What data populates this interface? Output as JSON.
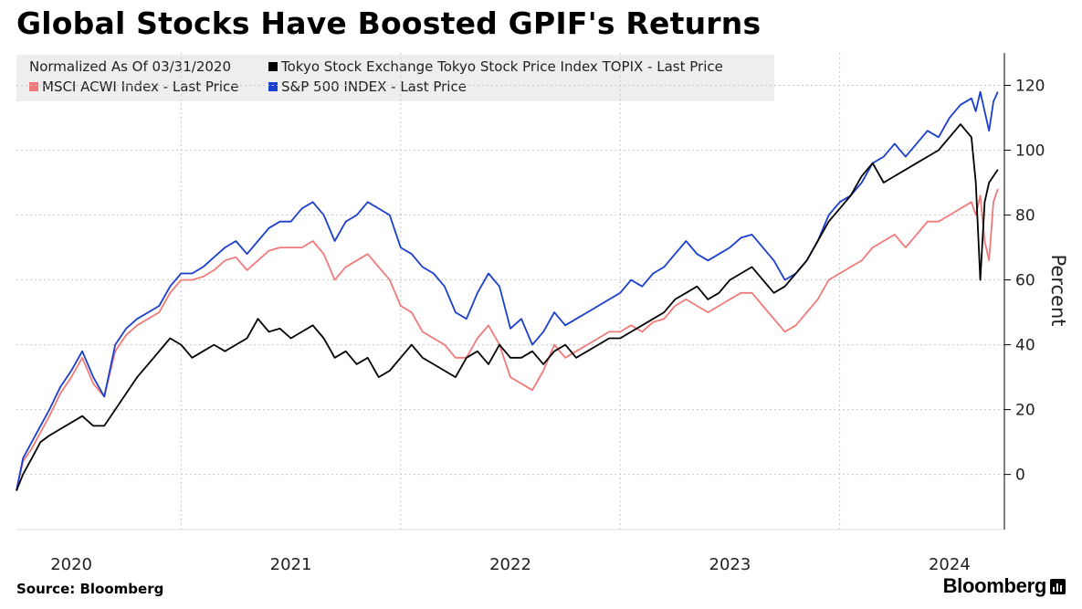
{
  "title": "Global Stocks Have Boosted GPIF's Returns",
  "legend": {
    "note": "Normalized As Of 03/31/2020",
    "items": [
      {
        "label": "Tokyo Stock Exchange Tokyo Stock Price Index TOPIX - Last Price",
        "color": "#000000"
      },
      {
        "label": "MSCI ACWI Index - Last Price",
        "color": "#f07a7a"
      },
      {
        "label": "S&P 500 INDEX - Last Price",
        "color": "#1a3fcc"
      }
    ]
  },
  "footer": {
    "source": "Source: Bloomberg",
    "brand": "Bloomberg"
  },
  "chart_data": {
    "type": "line",
    "title": "Global Stocks Have Boosted GPIF's Returns",
    "ylabel": "Percent",
    "xlabel": "",
    "ylim": [
      -17,
      130
    ],
    "yticks": [
      0,
      20,
      40,
      60,
      80,
      100,
      120
    ],
    "xlim": [
      2020.25,
      2024.75
    ],
    "year_labels": [
      "2020",
      "2021",
      "2022",
      "2023",
      "2024"
    ],
    "year_label_positions": [
      2020.5,
      2021.5,
      2022.5,
      2023.5,
      2024.5
    ],
    "year_boundaries": [
      2021.0,
      2022.0,
      2023.0,
      2024.0
    ],
    "grid": true,
    "series": [
      {
        "name": "S&P 500 INDEX - Last Price",
        "color": "#1a3fcc",
        "x": [
          2020.25,
          2020.28,
          2020.32,
          2020.36,
          2020.4,
          2020.45,
          2020.5,
          2020.55,
          2020.6,
          2020.65,
          2020.7,
          2020.75,
          2020.8,
          2020.85,
          2020.9,
          2020.95,
          2021.0,
          2021.05,
          2021.1,
          2021.15,
          2021.2,
          2021.25,
          2021.3,
          2021.35,
          2021.4,
          2021.45,
          2021.5,
          2021.55,
          2021.6,
          2021.65,
          2021.7,
          2021.75,
          2021.8,
          2021.85,
          2021.9,
          2021.95,
          2022.0,
          2022.05,
          2022.1,
          2022.15,
          2022.2,
          2022.25,
          2022.3,
          2022.35,
          2022.4,
          2022.45,
          2022.5,
          2022.55,
          2022.6,
          2022.65,
          2022.7,
          2022.75,
          2022.8,
          2022.85,
          2022.9,
          2022.95,
          2023.0,
          2023.05,
          2023.1,
          2023.15,
          2023.2,
          2023.25,
          2023.3,
          2023.35,
          2023.4,
          2023.45,
          2023.5,
          2023.55,
          2023.6,
          2023.65,
          2023.7,
          2023.75,
          2023.8,
          2023.85,
          2023.9,
          2023.95,
          2024.0,
          2024.05,
          2024.1,
          2024.15,
          2024.2,
          2024.25,
          2024.3,
          2024.35,
          2024.4,
          2024.45,
          2024.5,
          2024.55,
          2024.6,
          2024.62,
          2024.64,
          2024.66,
          2024.68,
          2024.7,
          2024.72
        ],
        "y": [
          -5,
          5,
          10,
          15,
          20,
          27,
          32,
          38,
          30,
          24,
          40,
          45,
          48,
          50,
          52,
          58,
          62,
          62,
          64,
          67,
          70,
          72,
          68,
          72,
          76,
          78,
          78,
          82,
          84,
          80,
          72,
          78,
          80,
          84,
          82,
          80,
          70,
          68,
          64,
          62,
          58,
          50,
          48,
          56,
          62,
          58,
          45,
          48,
          40,
          44,
          50,
          46,
          48,
          50,
          52,
          54,
          56,
          60,
          58,
          62,
          64,
          68,
          72,
          68,
          66,
          68,
          70,
          73,
          74,
          70,
          66,
          60,
          62,
          66,
          72,
          80,
          84,
          86,
          90,
          96,
          98,
          102,
          98,
          102,
          106,
          104,
          110,
          114,
          116,
          112,
          118,
          112,
          106,
          115,
          118
        ]
      },
      {
        "name": "MSCI ACWI Index - Last Price",
        "color": "#f07a7a",
        "x": [
          2020.25,
          2020.28,
          2020.32,
          2020.36,
          2020.4,
          2020.45,
          2020.5,
          2020.55,
          2020.6,
          2020.65,
          2020.7,
          2020.75,
          2020.8,
          2020.85,
          2020.9,
          2020.95,
          2021.0,
          2021.05,
          2021.1,
          2021.15,
          2021.2,
          2021.25,
          2021.3,
          2021.35,
          2021.4,
          2021.45,
          2021.5,
          2021.55,
          2021.6,
          2021.65,
          2021.7,
          2021.75,
          2021.8,
          2021.85,
          2021.9,
          2021.95,
          2022.0,
          2022.05,
          2022.1,
          2022.15,
          2022.2,
          2022.25,
          2022.3,
          2022.35,
          2022.4,
          2022.45,
          2022.5,
          2022.55,
          2022.6,
          2022.65,
          2022.7,
          2022.75,
          2022.8,
          2022.85,
          2022.9,
          2022.95,
          2023.0,
          2023.05,
          2023.1,
          2023.15,
          2023.2,
          2023.25,
          2023.3,
          2023.35,
          2023.4,
          2023.45,
          2023.5,
          2023.55,
          2023.6,
          2023.65,
          2023.7,
          2023.75,
          2023.8,
          2023.85,
          2023.9,
          2023.95,
          2024.0,
          2024.05,
          2024.1,
          2024.15,
          2024.2,
          2024.25,
          2024.3,
          2024.35,
          2024.4,
          2024.45,
          2024.5,
          2024.55,
          2024.6,
          2024.62,
          2024.64,
          2024.66,
          2024.68,
          2024.7,
          2024.72
        ],
        "y": [
          -5,
          4,
          8,
          13,
          18,
          25,
          30,
          36,
          28,
          24,
          38,
          43,
          46,
          48,
          50,
          56,
          60,
          60,
          61,
          63,
          66,
          67,
          63,
          66,
          69,
          70,
          70,
          70,
          72,
          68,
          60,
          64,
          66,
          68,
          64,
          60,
          52,
          50,
          44,
          42,
          40,
          36,
          36,
          42,
          46,
          40,
          30,
          28,
          26,
          32,
          40,
          36,
          38,
          40,
          42,
          44,
          44,
          46,
          44,
          47,
          48,
          52,
          54,
          52,
          50,
          52,
          54,
          56,
          56,
          52,
          48,
          44,
          46,
          50,
          54,
          60,
          62,
          64,
          66,
          70,
          72,
          74,
          70,
          74,
          78,
          78,
          80,
          82,
          84,
          80,
          86,
          72,
          66,
          84,
          88
        ]
      },
      {
        "name": "Tokyo Stock Exchange Tokyo Stock Price Index TOPIX - Last Price",
        "color": "#000000",
        "x": [
          2020.25,
          2020.28,
          2020.32,
          2020.36,
          2020.4,
          2020.45,
          2020.5,
          2020.55,
          2020.6,
          2020.65,
          2020.7,
          2020.75,
          2020.8,
          2020.85,
          2020.9,
          2020.95,
          2021.0,
          2021.05,
          2021.1,
          2021.15,
          2021.2,
          2021.25,
          2021.3,
          2021.35,
          2021.4,
          2021.45,
          2021.5,
          2021.55,
          2021.6,
          2021.65,
          2021.7,
          2021.75,
          2021.8,
          2021.85,
          2021.9,
          2021.95,
          2022.0,
          2022.05,
          2022.1,
          2022.15,
          2022.2,
          2022.25,
          2022.3,
          2022.35,
          2022.4,
          2022.45,
          2022.5,
          2022.55,
          2022.6,
          2022.65,
          2022.7,
          2022.75,
          2022.8,
          2022.85,
          2022.9,
          2022.95,
          2023.0,
          2023.05,
          2023.1,
          2023.15,
          2023.2,
          2023.25,
          2023.3,
          2023.35,
          2023.4,
          2023.45,
          2023.5,
          2023.55,
          2023.6,
          2023.65,
          2023.7,
          2023.75,
          2023.8,
          2023.85,
          2023.9,
          2023.95,
          2024.0,
          2024.05,
          2024.1,
          2024.15,
          2024.2,
          2024.25,
          2024.3,
          2024.35,
          2024.4,
          2024.45,
          2024.5,
          2024.55,
          2024.6,
          2024.62,
          2024.64,
          2024.66,
          2024.68,
          2024.7,
          2024.72
        ],
        "y": [
          -5,
          0,
          5,
          10,
          12,
          14,
          16,
          18,
          15,
          15,
          20,
          25,
          30,
          34,
          38,
          42,
          40,
          36,
          38,
          40,
          38,
          40,
          42,
          48,
          44,
          45,
          42,
          44,
          46,
          42,
          36,
          38,
          34,
          36,
          30,
          32,
          36,
          40,
          36,
          34,
          32,
          30,
          36,
          38,
          34,
          40,
          36,
          36,
          38,
          34,
          38,
          40,
          36,
          38,
          40,
          42,
          42,
          44,
          46,
          48,
          50,
          54,
          56,
          58,
          54,
          56,
          60,
          62,
          64,
          60,
          56,
          58,
          62,
          66,
          72,
          78,
          82,
          86,
          92,
          96,
          90,
          92,
          94,
          96,
          98,
          100,
          104,
          108,
          104,
          90,
          60,
          84,
          90,
          92,
          94
        ]
      }
    ]
  }
}
